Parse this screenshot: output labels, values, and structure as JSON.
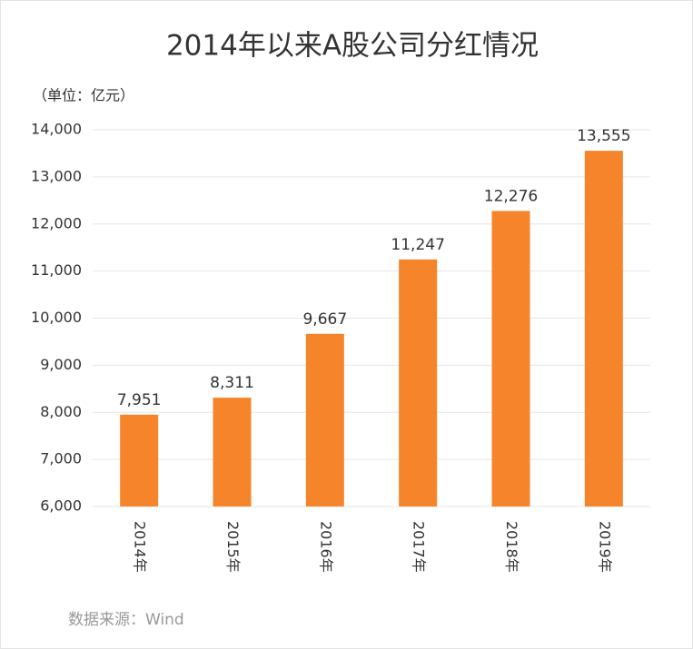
{
  "chart_data": {
    "type": "bar",
    "title": "2014年以来A股公司分红情况",
    "unit_label": "（单位：亿元）",
    "source": "数据来源：Wind",
    "categories": [
      "2014年",
      "2015年",
      "2016年",
      "2017年",
      "2018年",
      "2019年"
    ],
    "values": [
      7951,
      8311,
      9667,
      11247,
      12276,
      13555
    ],
    "value_labels": [
      "7,951",
      "8,311",
      "9,667",
      "11,247",
      "12,276",
      "13,555"
    ],
    "color": "#f5842a",
    "ylim": [
      6000,
      14000
    ],
    "yticks": [
      {
        "value": 6000,
        "label": "6,000"
      },
      {
        "value": 7000,
        "label": "7,000"
      },
      {
        "value": 8000,
        "label": "8,000"
      },
      {
        "value": 9000,
        "label": "9,000"
      },
      {
        "value": 10000,
        "label": "10,000"
      },
      {
        "value": 11000,
        "label": "11,000"
      },
      {
        "value": 12000,
        "label": "12,000"
      },
      {
        "value": 13000,
        "label": "13,000"
      },
      {
        "value": 14000,
        "label": "14,000"
      }
    ],
    "grid": true
  }
}
